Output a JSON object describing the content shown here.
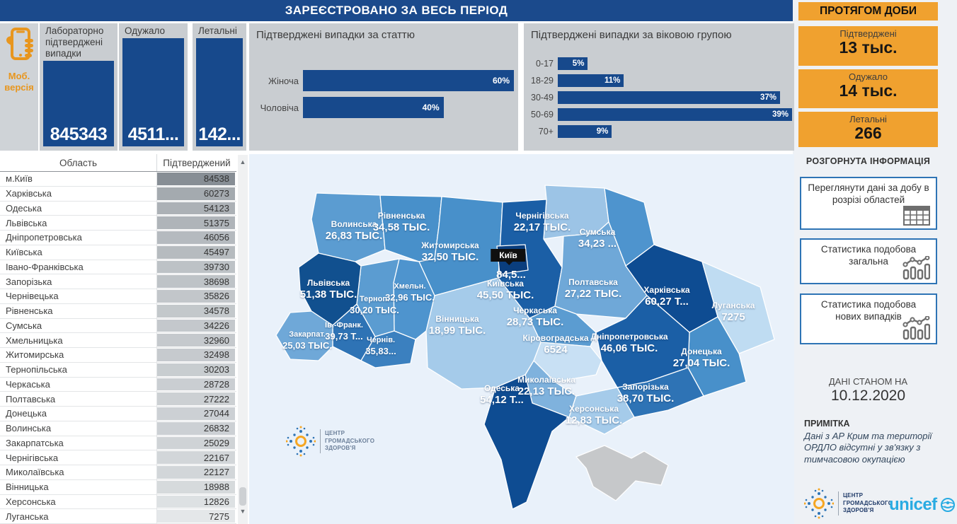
{
  "header": {
    "title": "ЗАРЕЄСТРОВАНО ЗА ВЕСЬ ПЕРІОД",
    "daily_title": "ПРОТЯГОМ ДОБИ"
  },
  "mobile": {
    "label_line1": "Моб.",
    "label_line2": "версія"
  },
  "kpi_cards": [
    {
      "label": "Лабораторно підтверджені випадки",
      "value": "845343"
    },
    {
      "label": "Одужало",
      "value": "4511..."
    },
    {
      "label": "Летальні",
      "value": "142..."
    }
  ],
  "gender_chart": {
    "title": "Підтверджені випадки за статтю",
    "items": [
      {
        "label": "Жіноча",
        "pct": 60,
        "display": "60%"
      },
      {
        "label": "Чоловіча",
        "pct": 40,
        "display": "40%"
      }
    ]
  },
  "age_chart": {
    "title": "Підтверджені випадки за віковою групою",
    "items": [
      {
        "label": "0-17",
        "pct": 5,
        "display": "5%"
      },
      {
        "label": "18-29",
        "pct": 11,
        "display": "11%"
      },
      {
        "label": "30-49",
        "pct": 37,
        "display": "37%"
      },
      {
        "label": "50-69",
        "pct": 39,
        "display": "39%"
      },
      {
        "label": "70+",
        "pct": 9,
        "display": "9%"
      }
    ]
  },
  "chart_data": [
    {
      "type": "bar",
      "title": "Підтверджені випадки за статтю",
      "categories": [
        "Жіноча",
        "Чоловіча"
      ],
      "values": [
        60,
        40
      ],
      "unit": "%",
      "orientation": "horizontal",
      "bar_color": "#17498C"
    },
    {
      "type": "bar",
      "title": "Підтверджені випадки за віковою групою",
      "categories": [
        "0-17",
        "18-29",
        "30-49",
        "50-69",
        "70+"
      ],
      "values": [
        5,
        11,
        37,
        39,
        9
      ],
      "unit": "%",
      "orientation": "horizontal",
      "bar_color": "#17498C"
    }
  ],
  "daily_cards": [
    {
      "label": "Підтверджені",
      "value": "13 тыс."
    },
    {
      "label": "Одужало",
      "value": "14 тыс."
    },
    {
      "label": "Летальні",
      "value": "266"
    }
  ],
  "info": {
    "title": "РОЗГОРНУТА ІНФОРМАЦІЯ",
    "buttons": [
      {
        "label": "Переглянути дані за добу в розрізі областей",
        "icon": "table-icon"
      },
      {
        "label": "Статистика подобова загальна",
        "icon": "chart-icon"
      },
      {
        "label": "Статистика подобова нових випадків",
        "icon": "chart-icon"
      }
    ]
  },
  "asof": {
    "label": "ДАНІ СТАНОМ НА",
    "date": "10.12.2020"
  },
  "note": {
    "title": "ПРИМІТКА",
    "text": "Дані з АР Крим та території ОРДЛО відсутні у зв'язку з тимчасовою окупацією"
  },
  "table": {
    "columns": [
      "Область",
      "Підтверджений"
    ],
    "bar_color_low": "#E4E7E9",
    "bar_color_high": "#878E95",
    "rows": [
      {
        "name": "м.Київ",
        "value": 84538
      },
      {
        "name": "Харківська",
        "value": 60273
      },
      {
        "name": "Одеська",
        "value": 54123
      },
      {
        "name": "Львівська",
        "value": 51375
      },
      {
        "name": "Дніпропетровська",
        "value": 46056
      },
      {
        "name": "Київська",
        "value": 45497
      },
      {
        "name": "Івано-Франківська",
        "value": 39730
      },
      {
        "name": "Запорізька",
        "value": 38698
      },
      {
        "name": "Чернівецька",
        "value": 35826
      },
      {
        "name": "Рівненська",
        "value": 34578
      },
      {
        "name": "Сумська",
        "value": 34226
      },
      {
        "name": "Хмельницька",
        "value": 32960
      },
      {
        "name": "Житомирська",
        "value": 32498
      },
      {
        "name": "Тернопільська",
        "value": 30203
      },
      {
        "name": "Черкаська",
        "value": 28728
      },
      {
        "name": "Полтавська",
        "value": 27222
      },
      {
        "name": "Донецька",
        "value": 27044
      },
      {
        "name": "Волинська",
        "value": 26832
      },
      {
        "name": "Закарпатська",
        "value": 25029
      },
      {
        "name": "Чернігівська",
        "value": 22167
      },
      {
        "name": "Миколаївська",
        "value": 22127
      },
      {
        "name": "Вінницька",
        "value": 18988
      },
      {
        "name": "Херсонська",
        "value": 12826
      },
      {
        "name": "Луганська",
        "value": 7275
      }
    ]
  },
  "map": {
    "city_label": {
      "id": "kyiv_city",
      "name": "Київ",
      "value": "84,5..."
    },
    "regions": [
      {
        "id": "volyn",
        "name": "Волинська",
        "value": "26,83 ТЫС.",
        "fill": "#5B9CD1"
      },
      {
        "id": "rivne",
        "name": "Рівненська",
        "value": "34,58 ТЫС.",
        "fill": "#4890CA"
      },
      {
        "id": "zhytomyr",
        "name": "Житомирська",
        "value": "32,50 ТЫС.",
        "fill": "#4890CA"
      },
      {
        "id": "chernihiv",
        "name": "Чернігівська",
        "value": "22,17 ТЫС.",
        "fill": "#9CC4E6"
      },
      {
        "id": "sumy",
        "name": "Сумська",
        "value": "34,23 ...",
        "fill": "#4E94CE"
      },
      {
        "id": "kyiv_obl",
        "name": "Київська",
        "value": "45,50 ТЫС.",
        "fill": "#1B5FA6"
      },
      {
        "id": "kyiv_city",
        "name": "Київ",
        "value": "84,5...",
        "fill": "#0A3E7E"
      },
      {
        "id": "poltava",
        "name": "Полтавська",
        "value": "27,22 ТЫС.",
        "fill": "#6FA8D8"
      },
      {
        "id": "kharkiv",
        "name": "Харківська",
        "value": "60,27 Т...",
        "fill": "#0E4C92"
      },
      {
        "id": "luhansk",
        "name": "Луганська",
        "value": "7275",
        "fill": "#BFDCF2"
      },
      {
        "id": "donetsk",
        "name": "Донецька",
        "value": "27,04 ТЫС.",
        "fill": "#4890CA"
      },
      {
        "id": "dnipro",
        "name": "Дніпропетровська",
        "value": "46,06 ТЫС.",
        "fill": "#1B5FA6"
      },
      {
        "id": "zaporizhzhia",
        "name": "Запорізька",
        "value": "38,70 ТЫС.",
        "fill": "#2E73B5"
      },
      {
        "id": "cherkasy",
        "name": "Черкаська",
        "value": "28,73 ТЫС.",
        "fill": "#5B9CD1"
      },
      {
        "id": "kirovohrad",
        "name": "Кіровоградська",
        "value": "6524",
        "fill": "#C8E0F4"
      },
      {
        "id": "mykolaiv",
        "name": "Миколаївська",
        "value": "22,13 ТЫС.",
        "fill": "#7FB2DD"
      },
      {
        "id": "kherson",
        "name": "Херсонська",
        "value": "12,83 ТЫС.",
        "fill": "#A5CBEA"
      },
      {
        "id": "odesa",
        "name": "Одеська",
        "value": "54,12 Т...",
        "fill": "#0E4C92"
      },
      {
        "id": "vinnytsia",
        "name": "Вінницька",
        "value": "18,99 ТЫС.",
        "fill": "#A5CBEA"
      },
      {
        "id": "khmelnytskyi",
        "name": "Хмельн.",
        "value": "32,96 ТЫС.",
        "fill": "#4E94CE"
      },
      {
        "id": "ternopil",
        "name": "Терноп.",
        "value": "30,20 ТЫС.",
        "fill": "#5B9CD1"
      },
      {
        "id": "lviv",
        "name": "Львівська",
        "value": "51,38 ТЫС.",
        "fill": "#11508F"
      },
      {
        "id": "ivano",
        "name": "Ів.-Франк.",
        "value": "39,73 Т...",
        "fill": "#2E73B5"
      },
      {
        "id": "chernivtsi",
        "name": "Чернів.",
        "value": "35,83...",
        "fill": "#3B80BF"
      },
      {
        "id": "zakarpattia",
        "name": "Закарпат.",
        "value": "25,03 ТЫС.",
        "fill": "#6FA8D8"
      },
      {
        "id": "crimea",
        "name": "",
        "value": "",
        "fill": "#C6C8CA",
        "no_label": true
      }
    ]
  },
  "logos": {
    "phc_text": "ЦЕНТР|ГРОМАДСЬКОГО|ЗДОРОВ'Я",
    "unicef_text": "unicef"
  },
  "colors": {
    "accent_blue": "#17498C",
    "accent_orange": "#F0A12F",
    "header_blue": "#1B4A8C"
  }
}
